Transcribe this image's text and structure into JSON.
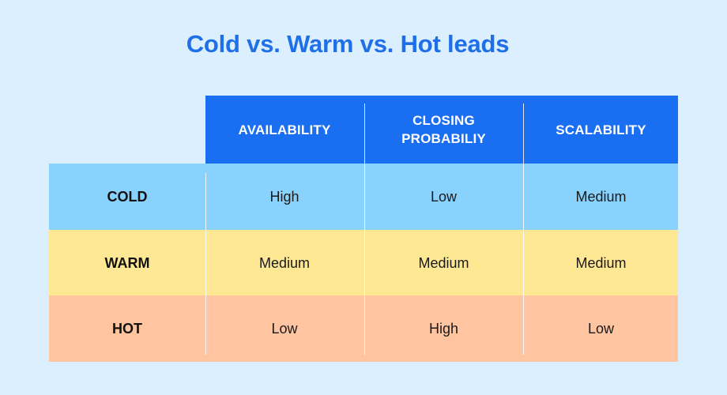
{
  "title": "Cold vs. Warm vs. Hot leads",
  "table": {
    "columns": [
      "AVAILABILITY",
      "CLOSING PROBABILIY",
      "SCALABILITY"
    ],
    "rows": [
      {
        "label": "COLD",
        "values": [
          "High",
          "Low",
          "Medium"
        ],
        "color": "#89d2fd"
      },
      {
        "label": "WARM",
        "values": [
          "Medium",
          "Medium",
          "Medium"
        ],
        "color": "#fee894"
      },
      {
        "label": "HOT",
        "values": [
          "Low",
          "High",
          "Low"
        ],
        "color": "#ffc4a0"
      }
    ],
    "header_color": "#1a6ef1"
  },
  "colors": {
    "background": "#dcefff",
    "title": "#1f6fe8"
  }
}
